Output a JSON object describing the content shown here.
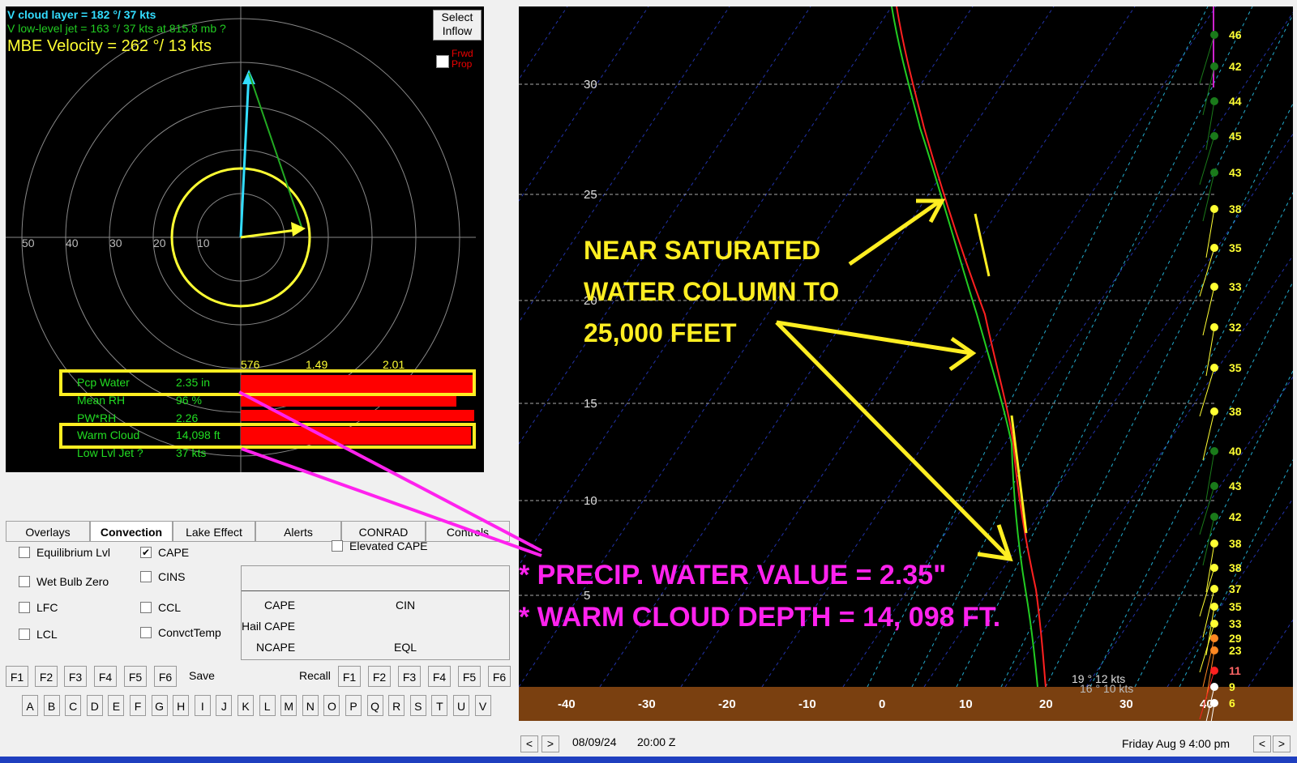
{
  "hodograph": {
    "cloud_layer": "V cloud layer   =  182 °/ 37 kts",
    "low_level_jet": "V low-level jet =  163 °/ 37 kts at  815.8 mb ?",
    "mbe_velocity": "MBE Velocity  =  262 °/ 13 kts",
    "select_inflow": [
      "Select",
      "Inflow"
    ],
    "frwd_prop": [
      "Frwd",
      "Prop"
    ],
    "ring_labels": [
      "50",
      "40",
      "30",
      "20",
      "10"
    ],
    "bar_scale": [
      "576",
      "1.49",
      "2.01"
    ],
    "params": [
      {
        "name": "Pcp Water",
        "value": "2.35 in"
      },
      {
        "name": "Mean RH",
        "value": "96 %"
      },
      {
        "name": "PW*RH",
        "value": "2.26"
      },
      {
        "name": "Warm Cloud",
        "value": "14,098 ft"
      },
      {
        "name": "Low Lvl Jet ?",
        "value": "37 kts"
      }
    ],
    "colors": {
      "cyan": "#33ddff",
      "green": "#22dd22",
      "yellow": "#ffff33",
      "bar_red": "#ff0000"
    }
  },
  "tabs": [
    "Overlays",
    "Convection",
    "Lake Effect",
    "Alerts",
    "CONRAD",
    "Controls"
  ],
  "active_tab": "Convection",
  "checkboxes": [
    {
      "label": "Equilibrium Lvl",
      "checked": false
    },
    {
      "label": "CAPE",
      "checked": true
    },
    {
      "label": "Wet Bulb Zero",
      "checked": false
    },
    {
      "label": "CINS",
      "checked": false
    },
    {
      "label": "LFC",
      "checked": false
    },
    {
      "label": "CCL",
      "checked": false
    },
    {
      "label": "LCL",
      "checked": false
    },
    {
      "label": "ConvctTemp",
      "checked": false
    },
    {
      "label": "Elevated CAPE",
      "checked": false
    }
  ],
  "cape_panel": {
    "cape": "CAPE",
    "cin": "CIN",
    "hail_cape": "Hail CAPE",
    "ncape": "NCAPE",
    "eql": "EQL"
  },
  "fkeys": {
    "keys": [
      "F1",
      "F2",
      "F3",
      "F4",
      "F5",
      "F6"
    ],
    "save": "Save",
    "recall": "Recall"
  },
  "letters": [
    "A",
    "B",
    "C",
    "D",
    "E",
    "F",
    "G",
    "H",
    "I",
    "J",
    "K",
    "L",
    "M",
    "N",
    "O",
    "P",
    "Q",
    "R",
    "S",
    "T",
    "U",
    "V"
  ],
  "skewt": {
    "height_labels": [
      "30",
      "25",
      "20",
      "15",
      "10",
      "5"
    ],
    "temp_labels": [
      "-40",
      "-30",
      "-20",
      "-10",
      "0",
      "10",
      "20",
      "30",
      "40"
    ],
    "wind_speeds": [
      "46",
      "42",
      "44",
      "45",
      "43",
      "38",
      "35",
      "33",
      "32",
      "35",
      "38",
      "40",
      "43",
      "42",
      "38",
      "38",
      "37",
      "35",
      "33",
      "29",
      "23",
      "11",
      "9",
      "6"
    ],
    "surface_wind": "19 ° 12 kts",
    "surface_wind2": "16 ° 10 kts",
    "annotation_yellow": [
      "NEAR SATURATED",
      "WATER COLUMN TO",
      "25,000 FEET"
    ],
    "annotation_magenta": [
      "* PRECIP. WATER VALUE = 2.35\"",
      "* WARM CLOUD DEPTH = 14, 098 FT."
    ],
    "colors": {
      "temp": "#ff2020",
      "dew": "#22cc22",
      "ground": "#7a4010",
      "annot_yellow": "#ffee22",
      "annot_magenta": "#ff22ee"
    }
  },
  "status": {
    "date": "08/09/24",
    "time": "20:00 Z",
    "day": "Friday   Aug 9  4:00 pm"
  }
}
